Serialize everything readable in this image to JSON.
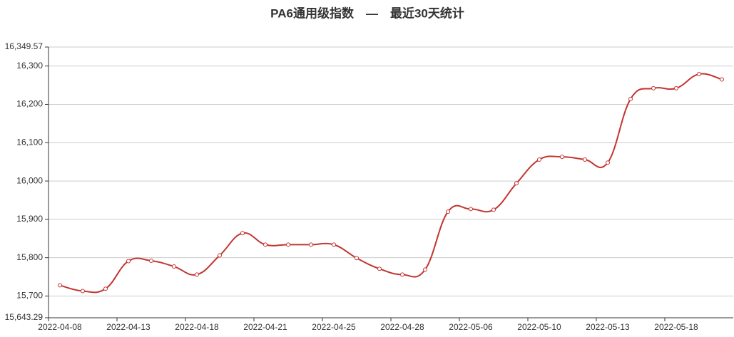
{
  "chart_data": {
    "type": "line",
    "title": "PA6通用级指数　—　最近30天统计",
    "categories": [
      "2022-04-08",
      null,
      null,
      "2022-04-13",
      null,
      null,
      "2022-04-18",
      null,
      null,
      "2022-04-21",
      null,
      null,
      "2022-04-25",
      null,
      null,
      "2022-04-28",
      null,
      null,
      "2022-05-06",
      null,
      null,
      "2022-05-10",
      null,
      null,
      "2022-05-13",
      null,
      null,
      "2022-05-18",
      null,
      null
    ],
    "series": [
      {
        "name": "PA6通用级指数",
        "color": "#c23531",
        "values": [
          15728,
          15713,
          15719,
          15791,
          15792,
          15777,
          15756,
          15806,
          15864,
          15834,
          15834,
          15834,
          15834,
          15799,
          15771,
          15756,
          15769,
          15920,
          15927,
          15925,
          15994,
          16056,
          16063,
          16056,
          16048,
          16214,
          16242,
          16242,
          16279,
          16265
        ]
      }
    ],
    "ylim": [
      15643.29,
      16349.57
    ],
    "yticks": [
      {
        "value": 15643.29,
        "label": "15,643.29"
      },
      {
        "value": 15700,
        "label": "15,700"
      },
      {
        "value": 15800,
        "label": "15,800"
      },
      {
        "value": 15900,
        "label": "15,900"
      },
      {
        "value": 16000,
        "label": "16,000"
      },
      {
        "value": 16100,
        "label": "16,100"
      },
      {
        "value": 16200,
        "label": "16,200"
      },
      {
        "value": 16300,
        "label": "16,300"
      },
      {
        "value": 16349.57,
        "label": "16,349.57"
      }
    ],
    "grid": true
  }
}
